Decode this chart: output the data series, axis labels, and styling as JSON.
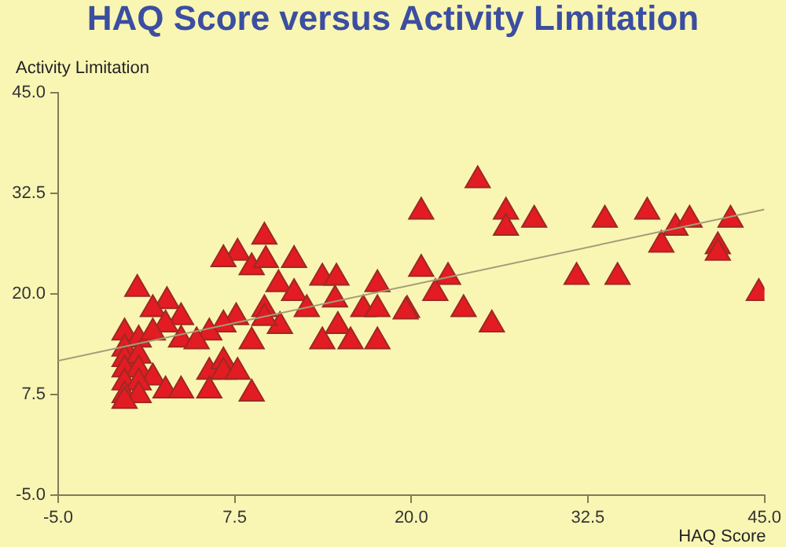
{
  "chart_data": {
    "type": "scatter",
    "title": "HAQ Score versus Activity Limitation",
    "xlabel": "HAQ Score",
    "ylabel": "Activity Limitation",
    "xlim": [
      -5,
      45
    ],
    "ylim": [
      -5,
      45
    ],
    "xticks": [
      {
        "value": -5,
        "label": "-5.0"
      },
      7.5,
      {
        "value": 20,
        "label": "20.0"
      },
      32.5,
      {
        "value": 45,
        "label": "45.0"
      }
    ],
    "yticks": [
      {
        "value": -5,
        "label": "-5.0"
      },
      7.5,
      {
        "value": 20,
        "label": "20.0"
      },
      32.5,
      {
        "value": 45,
        "label": "45.0"
      }
    ],
    "grid": false,
    "legend": false,
    "series": [
      {
        "marker": "triangle",
        "color": "#e31b23",
        "x": [
          24.7,
          20.7,
          26.7,
          26.7,
          28.7,
          33.7,
          36.7,
          38.7,
          39.7,
          37.7,
          42.6,
          41.7,
          41.7,
          44.6,
          31.7,
          34.6,
          20.7,
          22.6,
          21.7,
          19.7,
          23.7,
          25.7,
          9.6,
          7.7,
          6.7,
          8.7,
          9.7,
          11.7,
          10.6,
          11.7,
          13.7,
          14.7,
          14.6,
          12.6,
          9.6,
          10.7,
          8.7,
          7.6,
          6.7,
          17.6,
          16.6,
          17.6,
          19.6,
          14.8,
          13.7,
          15.7,
          17.6,
          0.6,
          2.7,
          1.7,
          3.7,
          2.6,
          -0.3,
          0.7,
          1.7,
          3.7,
          5.7,
          9.6,
          4.8,
          -0.3,
          -0.3,
          0.7,
          -0.3,
          0.7,
          1.7,
          -0.3,
          0.7,
          -0.3,
          0.7,
          2.6,
          3.7,
          5.7,
          6.7,
          6.7,
          7.7,
          5.7,
          8.7,
          -0.3
        ],
        "values": [
          34.1,
          30.2,
          30.2,
          28.2,
          29.2,
          29.2,
          30.2,
          28.2,
          29.2,
          26.1,
          29.2,
          25.9,
          25.1,
          20.1,
          22.1,
          22.1,
          23.1,
          22.1,
          20.1,
          18.0,
          18.1,
          16.2,
          27.1,
          25.1,
          24.3,
          23.3,
          24.2,
          24.2,
          21.2,
          20.1,
          22.0,
          22.0,
          19.3,
          18.1,
          18.1,
          16.0,
          14.1,
          17.1,
          16.2,
          21.2,
          18.1,
          18.1,
          17.8,
          16.0,
          14.1,
          14.1,
          14.1,
          20.6,
          19.1,
          18.1,
          17.1,
          16.2,
          15.2,
          14.3,
          15.2,
          14.3,
          15.2,
          17.0,
          14.1,
          13.2,
          11.9,
          12.3,
          10.6,
          10.6,
          9.6,
          9.0,
          9.0,
          7.4,
          7.4,
          8.0,
          8.0,
          10.3,
          11.6,
          10.3,
          10.3,
          8.0,
          7.6,
          6.7
        ]
      },
      {
        "type": "line",
        "color": "#a39d78",
        "x": [
          -5,
          45
        ],
        "values": [
          11.7,
          30.5
        ]
      }
    ]
  }
}
